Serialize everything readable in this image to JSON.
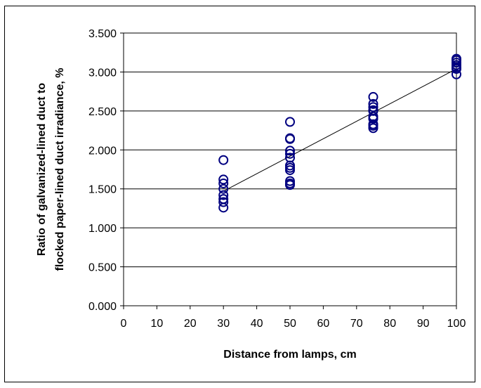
{
  "chart_data": {
    "type": "scatter",
    "title": "",
    "xlabel": "Distance from lamps, cm",
    "ylabel_lines": [
      "Ratio of galvanized-lined duct to",
      "flocked paper-lined duct irradiance, %"
    ],
    "xlim": [
      0,
      100
    ],
    "ylim": [
      0,
      3.5
    ],
    "xticks": [
      0,
      10,
      20,
      30,
      40,
      50,
      60,
      70,
      80,
      90,
      100
    ],
    "xtick_labels": [
      "0",
      "10",
      "20",
      "30",
      "40",
      "50",
      "60",
      "70",
      "80",
      "90",
      "100"
    ],
    "yticks": [
      0,
      0.5,
      1.0,
      1.5,
      2.0,
      2.5,
      3.0,
      3.5
    ],
    "ytick_labels": [
      "0.000",
      "0.500",
      "1.000",
      "1.500",
      "2.000",
      "2.500",
      "3.000",
      "3.500"
    ],
    "grid": "horizontal",
    "legend": "none",
    "marker_color": "#000080",
    "line_color": "#000000",
    "points": [
      {
        "x": 30,
        "y": 1.87
      },
      {
        "x": 30,
        "y": 1.62
      },
      {
        "x": 30,
        "y": 1.57
      },
      {
        "x": 30,
        "y": 1.5
      },
      {
        "x": 30,
        "y": 1.42
      },
      {
        "x": 30,
        "y": 1.37
      },
      {
        "x": 30,
        "y": 1.33
      },
      {
        "x": 30,
        "y": 1.26
      },
      {
        "x": 50,
        "y": 2.36
      },
      {
        "x": 50,
        "y": 2.15
      },
      {
        "x": 50,
        "y": 2.14
      },
      {
        "x": 50,
        "y": 1.99
      },
      {
        "x": 50,
        "y": 1.95
      },
      {
        "x": 50,
        "y": 1.9
      },
      {
        "x": 50,
        "y": 1.8
      },
      {
        "x": 50,
        "y": 1.77
      },
      {
        "x": 50,
        "y": 1.74
      },
      {
        "x": 50,
        "y": 1.6
      },
      {
        "x": 50,
        "y": 1.57
      },
      {
        "x": 50,
        "y": 1.55
      },
      {
        "x": 75,
        "y": 2.68
      },
      {
        "x": 75,
        "y": 2.59
      },
      {
        "x": 75,
        "y": 2.55
      },
      {
        "x": 75,
        "y": 2.51
      },
      {
        "x": 75,
        "y": 2.5
      },
      {
        "x": 75,
        "y": 2.43
      },
      {
        "x": 75,
        "y": 2.4
      },
      {
        "x": 75,
        "y": 2.33
      },
      {
        "x": 75,
        "y": 2.31
      },
      {
        "x": 75,
        "y": 2.28
      },
      {
        "x": 100,
        "y": 3.17
      },
      {
        "x": 100,
        "y": 3.15
      },
      {
        "x": 100,
        "y": 3.12
      },
      {
        "x": 100,
        "y": 3.09
      },
      {
        "x": 100,
        "y": 3.06
      },
      {
        "x": 100,
        "y": 3.04
      },
      {
        "x": 100,
        "y": 2.97
      }
    ],
    "trendline": {
      "x": [
        30,
        100
      ],
      "y": [
        1.47,
        3.04
      ]
    }
  }
}
